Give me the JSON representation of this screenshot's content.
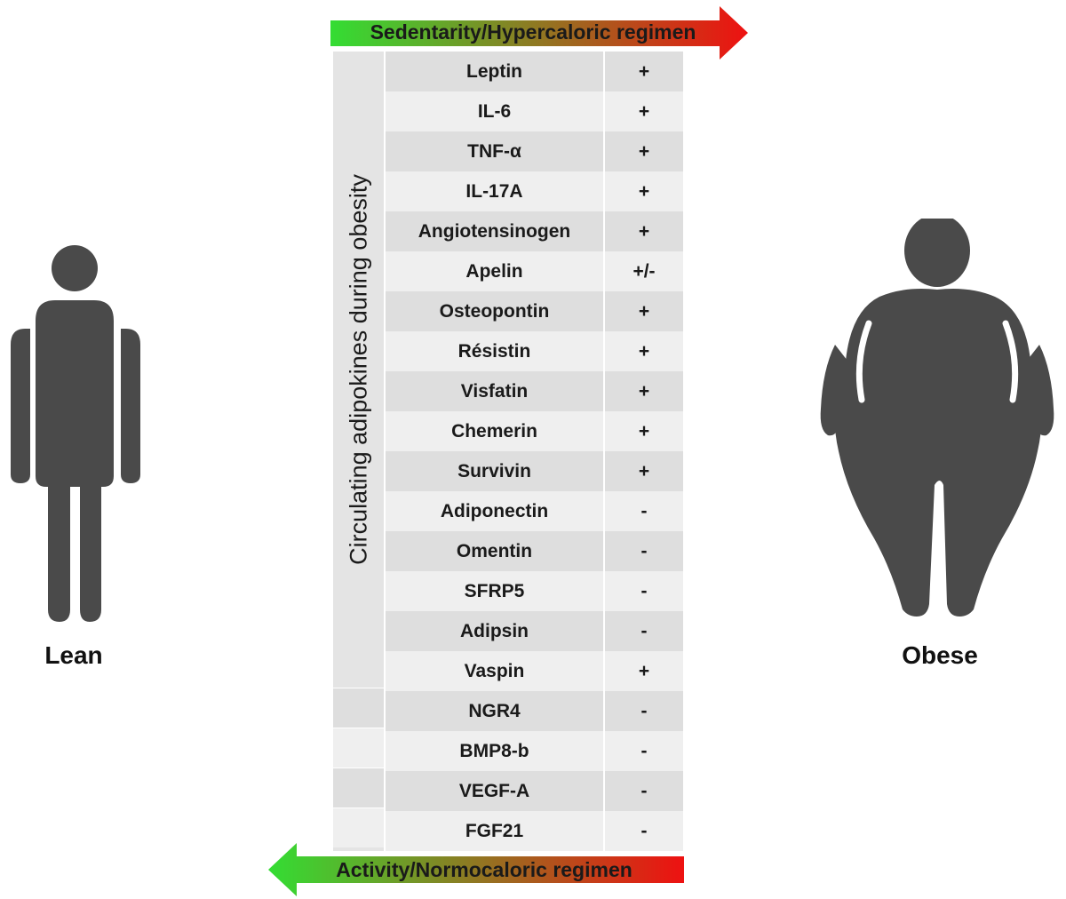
{
  "top_arrow": {
    "label": "Sedentarity/Hypercaloric regimen",
    "from_color": "#33dd33",
    "to_color": "#ee1111"
  },
  "bottom_arrow": {
    "label": "Activity/Normocaloric regimen",
    "from_color": "#33dd33",
    "to_color": "#ee1111"
  },
  "side_label": "Circulating adipokines during obesity",
  "lean": {
    "label": "Lean",
    "icon": "lean-person-icon",
    "color": "#4a4a4a"
  },
  "obese": {
    "label": "Obese",
    "icon": "obese-person-icon",
    "color": "#4a4a4a"
  },
  "rows": [
    {
      "name": "Leptin",
      "sign": "+"
    },
    {
      "name": "IL-6",
      "sign": "+"
    },
    {
      "name": "TNF-α",
      "sign": "+"
    },
    {
      "name": "IL-17A",
      "sign": "+"
    },
    {
      "name": "Angiotensinogen",
      "sign": "+"
    },
    {
      "name": "Apelin",
      "sign": "+/-"
    },
    {
      "name": "Osteopontin",
      "sign": "+"
    },
    {
      "name": "Résistin",
      "sign": "+"
    },
    {
      "name": "Visfatin",
      "sign": "+"
    },
    {
      "name": "Chemerin",
      "sign": "+"
    },
    {
      "name": "Survivin",
      "sign": "+"
    },
    {
      "name": "Adiponectin",
      "sign": "-"
    },
    {
      "name": "Omentin",
      "sign": "-"
    },
    {
      "name": "SFRP5",
      "sign": "-"
    },
    {
      "name": "Adipsin",
      "sign": "-"
    },
    {
      "name": "Vaspin",
      "sign": "+"
    },
    {
      "name": "NGR4",
      "sign": "-"
    },
    {
      "name": "BMP8-b",
      "sign": "-"
    },
    {
      "name": "VEGF-A",
      "sign": "-"
    },
    {
      "name": "FGF21",
      "sign": "-"
    }
  ]
}
